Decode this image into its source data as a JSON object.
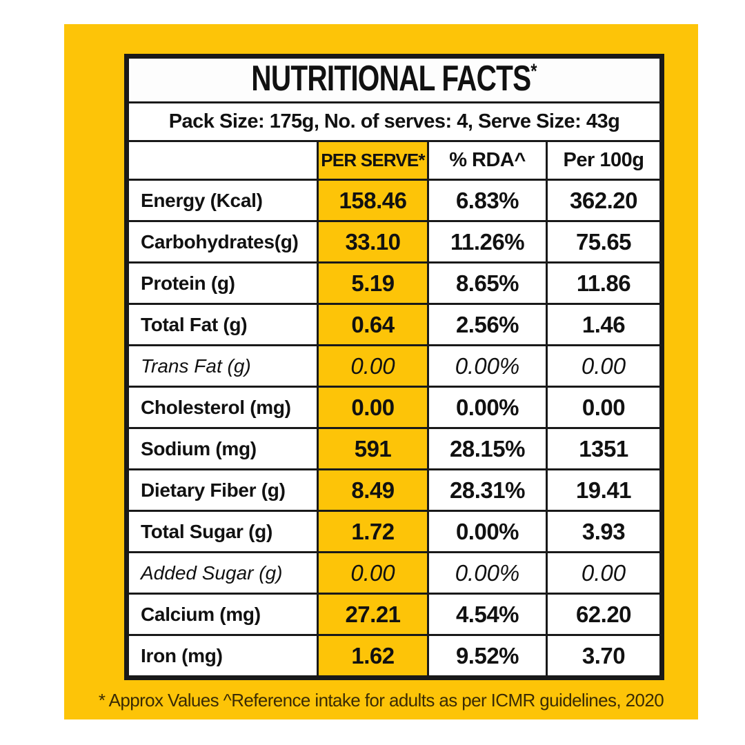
{
  "title": {
    "text": "NUTRITIONAL FACTS",
    "mark": "*"
  },
  "pack_info": "Pack Size: 175g, No. of serves: 4, Serve Size: 43g",
  "columns": {
    "label": "",
    "per_serve": "PER SERVE*",
    "rda": "% RDA^",
    "per_100g": "Per 100g"
  },
  "rows": [
    {
      "label": "Energy (Kcal)",
      "per_serve": "158.46",
      "rda": "6.83%",
      "per_100g": "362.20"
    },
    {
      "label": "Carbohydrates(g)",
      "per_serve": "33.10",
      "rda": "11.26%",
      "per_100g": "75.65"
    },
    {
      "label": "Protein (g)",
      "per_serve": "5.19",
      "rda": "8.65%",
      "per_100g": "11.86"
    },
    {
      "label": "Total Fat (g)",
      "per_serve": "0.64",
      "rda": "2.56%",
      "per_100g": "1.46"
    },
    {
      "label": "Trans Fat (g)",
      "per_serve": "0.00",
      "rda": "0.00%",
      "per_100g": "0.00"
    },
    {
      "label": "Cholesterol (mg)",
      "per_serve": "0.00",
      "rda": "0.00%",
      "per_100g": "0.00"
    },
    {
      "label": "Sodium (mg)",
      "per_serve": "591",
      "rda": "28.15%",
      "per_100g": "1351"
    },
    {
      "label": "Dietary Fiber (g)",
      "per_serve": "8.49",
      "rda": "28.31%",
      "per_100g": "19.41"
    },
    {
      "label": "Total Sugar (g)",
      "per_serve": "1.72",
      "rda": "0.00%",
      "per_100g": "3.93"
    },
    {
      "label": "Added Sugar (g)",
      "per_serve": "0.00",
      "rda": "0.00%",
      "per_100g": "0.00"
    },
    {
      "label": "Calcium (mg)",
      "per_serve": "27.21",
      "rda": "4.54%",
      "per_100g": "62.20"
    },
    {
      "label": "Iron (mg)",
      "per_serve": "1.62",
      "rda": "9.52%",
      "per_100g": "3.70"
    }
  ],
  "footnote": "* Approx Values ^Reference intake for adults as per ICMR guidelines, 2020",
  "colors": {
    "background_yellow": "#fdc408",
    "highlight_column_yellow": "#fdc408",
    "border_black": "#191919",
    "text_black": "#111111",
    "footnote_brown": "#3a2b05"
  }
}
